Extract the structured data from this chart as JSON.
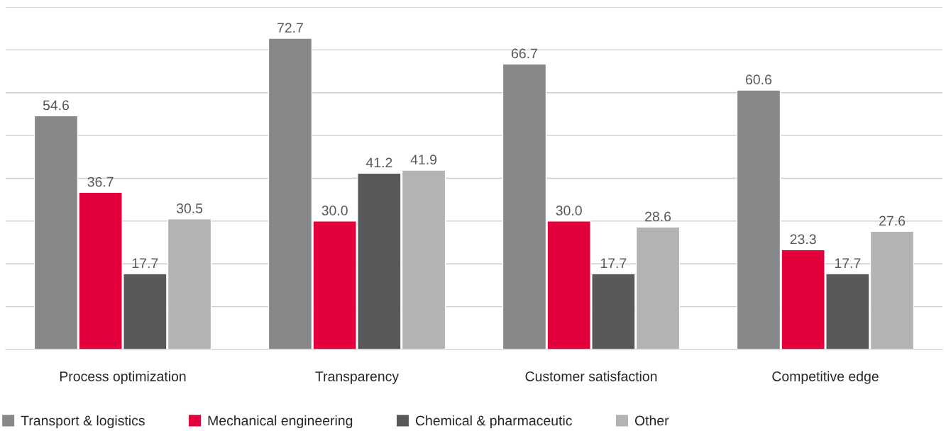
{
  "chart_data": {
    "type": "bar",
    "categories": [
      "Process optimization",
      "Transparency",
      "Customer satisfaction",
      "Competitive edge"
    ],
    "series": [
      {
        "name": "Transport & logistics",
        "color": "#87888a",
        "values": [
          54.6,
          72.7,
          66.7,
          60.6
        ],
        "value_labels": [
          "54.6",
          "72.7",
          "66.7",
          "60.6"
        ]
      },
      {
        "name": "Mechanical engineering",
        "color": "#e4003a",
        "values": [
          36.7,
          30.0,
          30.0,
          23.3
        ],
        "value_labels": [
          "36.7",
          "30.0",
          "30.0",
          "23.3"
        ]
      },
      {
        "name": "Chemical & pharmaceutic",
        "color": "#58595b",
        "values": [
          17.7,
          41.2,
          17.7,
          17.7
        ],
        "value_labels": [
          "17.7",
          "41.2",
          "17.7",
          "17.7"
        ]
      },
      {
        "name": "Other",
        "color": "#b2b3b5",
        "values": [
          30.5,
          41.9,
          28.6,
          27.6
        ],
        "value_labels": [
          "30.5",
          "41.9",
          "28.6",
          "27.6"
        ]
      }
    ],
    "ylim": [
      0,
      80
    ],
    "yticks": [
      {
        "value": 10,
        "label": null
      },
      {
        "value": 20,
        "label": null
      },
      {
        "value": 30,
        "label": null
      },
      {
        "value": 40,
        "label": null
      },
      {
        "value": 50,
        "label": null
      },
      {
        "value": 60,
        "label": null
      },
      {
        "value": 70,
        "label": null
      },
      {
        "value": 80,
        "label": null
      }
    ],
    "tick_labels": "x",
    "grid": "y",
    "legend": "bottom left"
  }
}
